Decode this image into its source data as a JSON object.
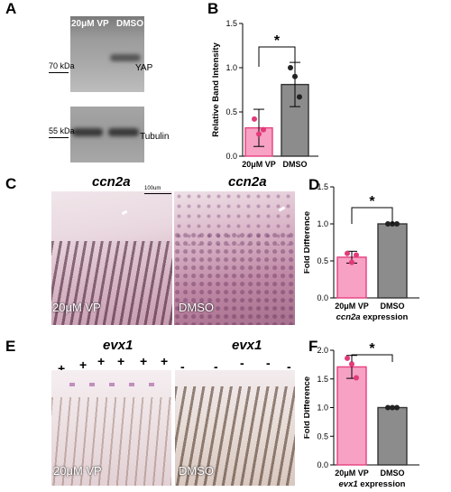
{
  "panels": {
    "A": {
      "label": "A",
      "lane1": "20μM VP",
      "lane2": "DMSO",
      "yap_mw": "70 kDa",
      "yap": "YAP",
      "tub_mw": "55 kDa",
      "tub": "Tubulin"
    },
    "B": {
      "label": "B"
    },
    "C": {
      "label": "C",
      "title_left": "ccn2a",
      "title_right": "ccn2a",
      "scale": "100um",
      "cap_left": "20μM VP",
      "cap_right": "DMSO"
    },
    "D": {
      "label": "D"
    },
    "E": {
      "label": "E",
      "title_left": "evx1",
      "title_right": "evx1",
      "cap_left": "20μM VP",
      "cap_right": "DMSO",
      "plus": "+",
      "minus": "-"
    },
    "F": {
      "label": "F"
    }
  },
  "colors": {
    "vp_fill": "#f7a1c4",
    "vp_edge": "#e6407f",
    "dmso_fill": "#8c8c8c",
    "dmso_edge": "#333333",
    "point_vp": "#e23a7a",
    "point_dmso": "#222222"
  },
  "chart_data": [
    {
      "id": "B",
      "type": "bar",
      "categories": [
        "20μM VP",
        "DMSO"
      ],
      "values": [
        0.32,
        0.81
      ],
      "errors": [
        0.21,
        0.25
      ],
      "points": [
        [
          0.42,
          0.25,
          0.3
        ],
        [
          1.0,
          0.9,
          0.67
        ]
      ],
      "ylabel": "Relative Band Intensity",
      "xlabel": "",
      "ylim": [
        0,
        1.5
      ],
      "yticks": [
        "0.0",
        "0.5",
        "1.0",
        "1.5"
      ],
      "significance": "*"
    },
    {
      "id": "D",
      "type": "bar",
      "categories": [
        "20μM VP",
        "DMSO"
      ],
      "values": [
        0.55,
        1.0
      ],
      "errors": [
        0.08,
        0.01
      ],
      "points": [
        [
          0.6,
          0.48,
          0.58
        ],
        [
          1.0,
          1.0,
          1.0
        ]
      ],
      "ylabel": "Fold Difference",
      "xlabel": "ccn2a expression",
      "ylim": [
        0,
        1.5
      ],
      "yticks": [
        "0.0",
        "0.5",
        "1.0",
        "1.5"
      ],
      "significance": "*"
    },
    {
      "id": "F",
      "type": "bar",
      "categories": [
        "20μM VP",
        "DMSO"
      ],
      "values": [
        1.71,
        1.0
      ],
      "errors": [
        0.2,
        0.01
      ],
      "points": [
        [
          1.86,
          1.76,
          1.52
        ],
        [
          1.0,
          1.0,
          1.0
        ]
      ],
      "ylabel": "Fold Difference",
      "xlabel": "evx1 expression",
      "ylim": [
        0,
        2.0
      ],
      "yticks": [
        "0.0",
        "0.5",
        "1.0",
        "1.5",
        "2.0"
      ],
      "significance": "*"
    }
  ]
}
